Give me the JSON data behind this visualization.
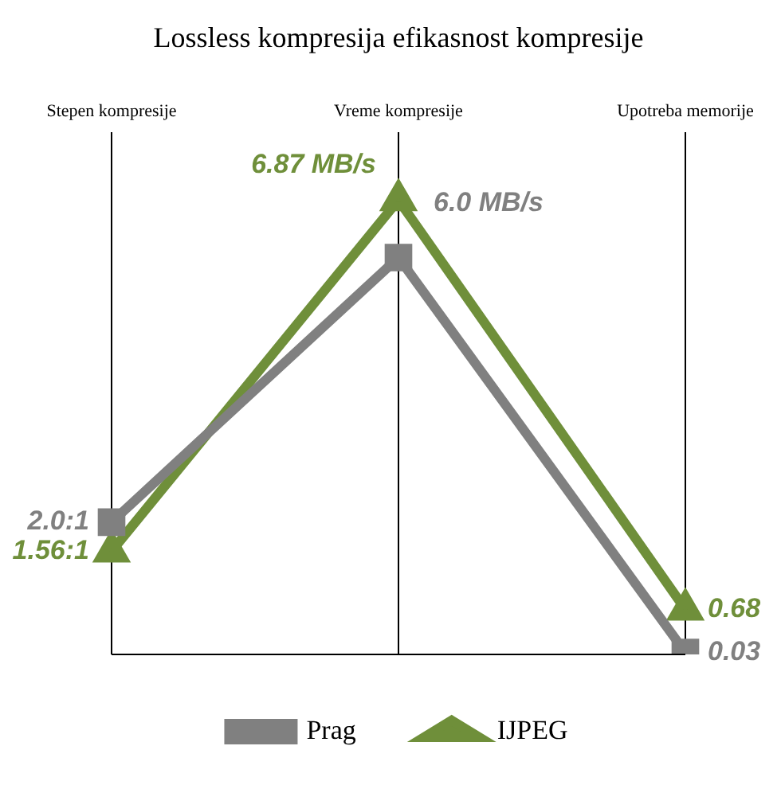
{
  "chart_data": {
    "type": "line",
    "title": "Lossless kompresija efikasnost kompresije",
    "categories": [
      "Stepen kompresije",
      "Vreme kompresije",
      "Upotreba memorije"
    ],
    "grid": "x",
    "legend": "bottom",
    "line_style": "solid",
    "series": [
      {
        "name": "Prag",
        "color": "#808080",
        "marker": "square",
        "values": [
          2.0,
          6.0,
          0.03
        ],
        "value_labels": [
          "2.0:1",
          "6.0 MB/s",
          "0.03"
        ]
      },
      {
        "name": "IJPEG",
        "color": "#6f8f3a",
        "marker": "triangle",
        "values": [
          1.56,
          6.87,
          0.68
        ],
        "value_labels": [
          "1.56:1",
          "6.87 MB/s",
          "0.68"
        ]
      }
    ]
  }
}
